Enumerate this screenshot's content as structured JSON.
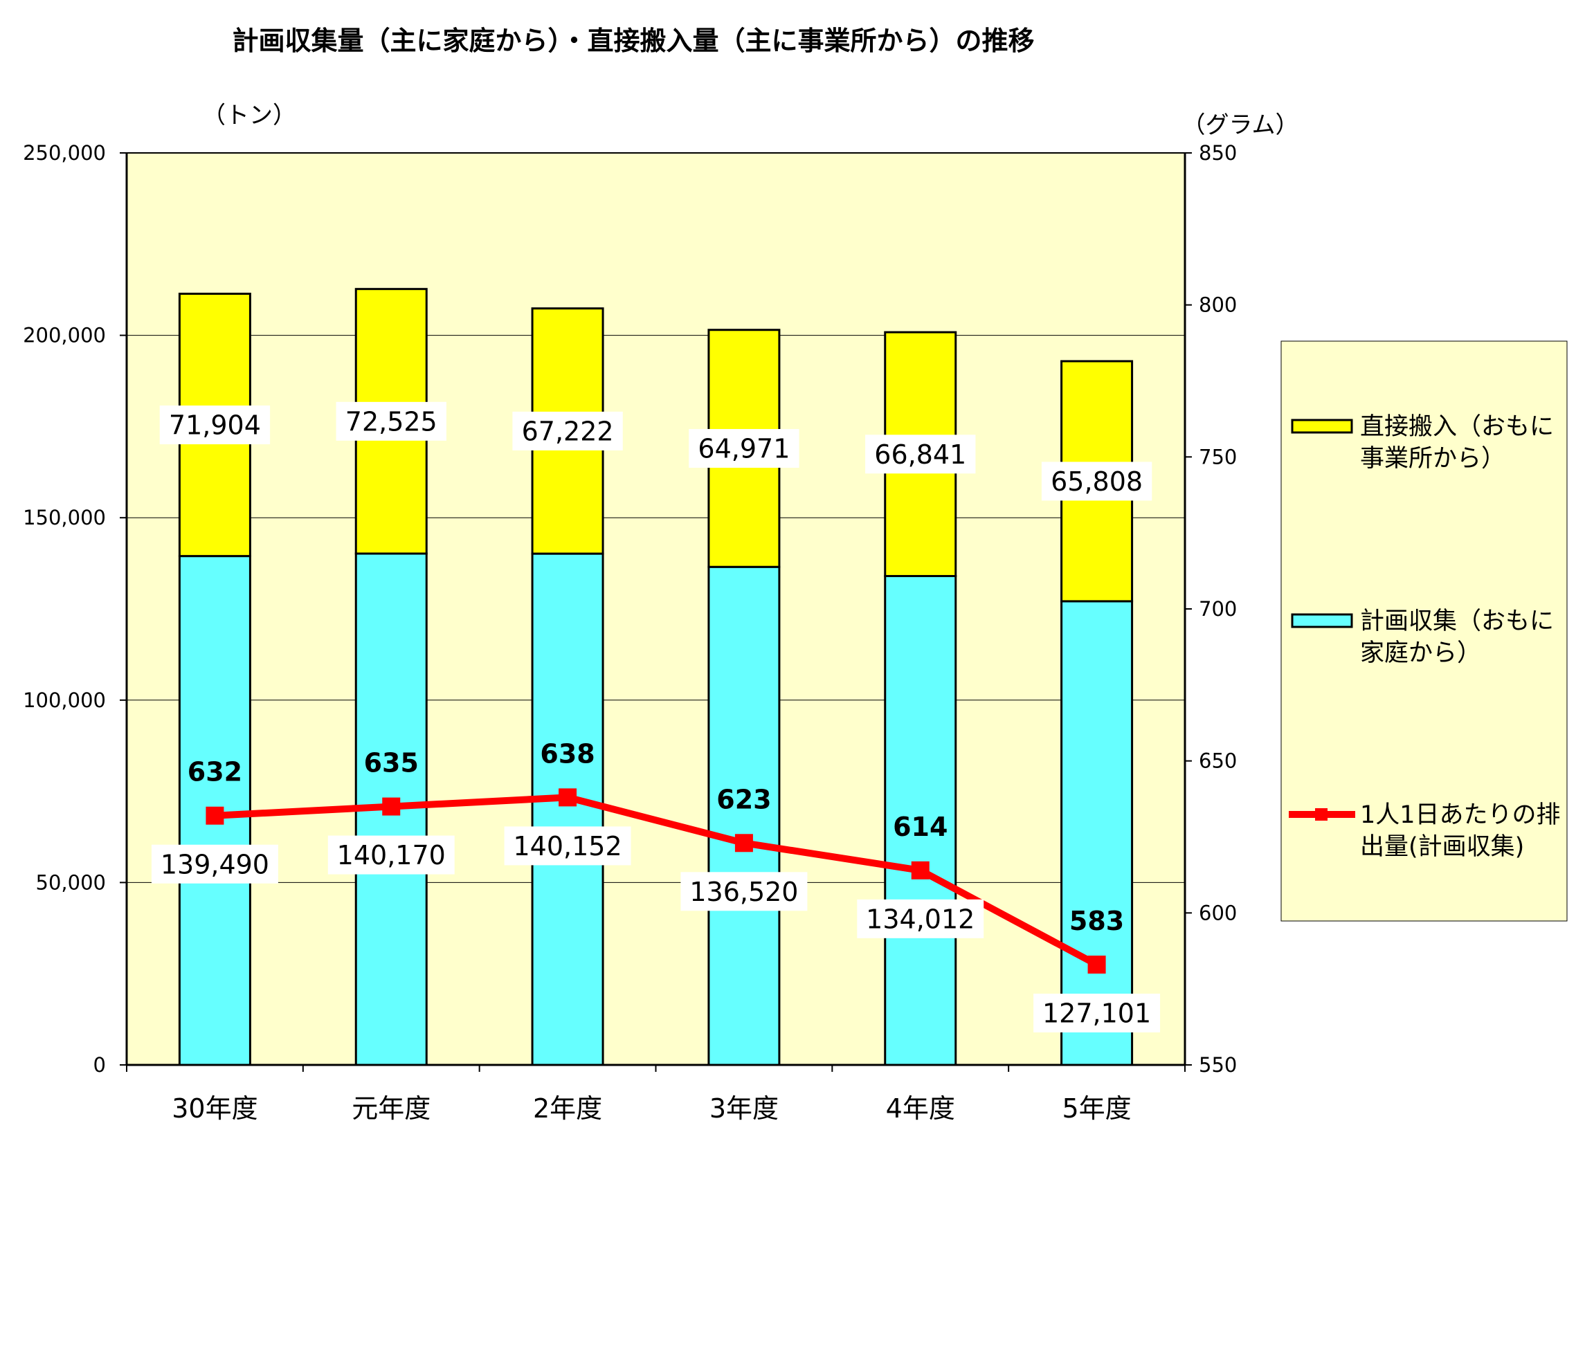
{
  "chart_data": {
    "type": "bar",
    "title": "計画収集量（主に家庭から）・直接搬入量（主に事業所から）の推移",
    "left_axis": {
      "unit_label": "（トン）",
      "min": 0,
      "max": 250000,
      "step": 50000,
      "ticks": [
        "0",
        "50,000",
        "100,000",
        "150,000",
        "200,000",
        "250,000"
      ]
    },
    "right_axis": {
      "unit_label": "（グラム）",
      "min": 550,
      "max": 850,
      "step": 50,
      "ticks": [
        "550",
        "600",
        "650",
        "700",
        "750",
        "800",
        "850"
      ]
    },
    "categories": [
      "30年度",
      "元年度",
      "2年度",
      "3年度",
      "4年度",
      "5年度"
    ],
    "series": [
      {
        "name": "計画収集（おもに家庭から）",
        "kind": "bar",
        "axis": "left",
        "color": "#66FFFF",
        "values": [
          139490,
          140170,
          140152,
          136520,
          134012,
          127101
        ],
        "labels": [
          "139,490",
          "140,170",
          "140,152",
          "136,520",
          "134,012",
          "127,101"
        ]
      },
      {
        "name": "直接搬入（おもに事業所から）",
        "kind": "bar",
        "axis": "left",
        "color": "#FFFF00",
        "values": [
          71904,
          72525,
          67222,
          64971,
          66841,
          65808
        ],
        "labels": [
          "71,904",
          "72,525",
          "67,222",
          "64,971",
          "66,841",
          "65,808"
        ]
      },
      {
        "name": "1人1日あたりの排出量(計画収集)",
        "kind": "line",
        "axis": "right",
        "color": "#FF0000",
        "values": [
          632,
          635,
          638,
          623,
          614,
          583
        ],
        "labels": [
          "632",
          "635",
          "638",
          "623",
          "614",
          "583"
        ]
      }
    ],
    "legend": {
      "position": "right",
      "items": [
        {
          "line1": "直接搬入（おもに",
          "line2": "事業所から）",
          "color": "#FFFF00",
          "marker": "box"
        },
        {
          "line1": "計画収集（おもに",
          "line2": "家庭から）",
          "color": "#66FFFF",
          "marker": "box"
        },
        {
          "line1": "1人1日あたりの排",
          "line2": "出量(計画収集)",
          "color": "#FF0000",
          "marker": "line"
        }
      ]
    },
    "plot_background": "#FFFFCC",
    "grid": true
  }
}
